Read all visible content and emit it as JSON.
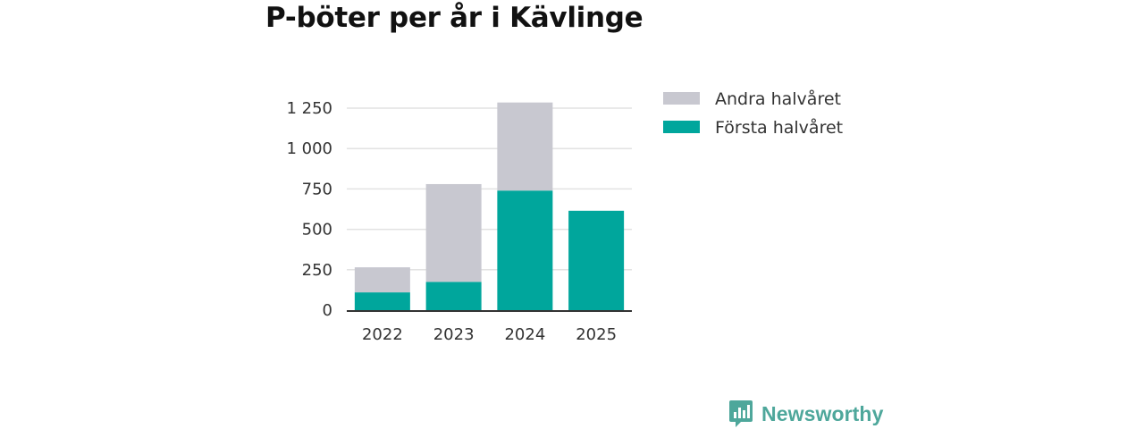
{
  "chart_data": {
    "type": "bar",
    "stacked": true,
    "title": "P-böter per år i Kävlinge",
    "categories": [
      "2022",
      "2023",
      "2024",
      "2025"
    ],
    "series": [
      {
        "name": "Första halvåret",
        "color": "#00a69c",
        "values": [
          110,
          175,
          740,
          615
        ]
      },
      {
        "name": "Andra halvåret",
        "color": "#c8c8d0",
        "values": [
          155,
          605,
          545,
          0
        ]
      }
    ],
    "legend_order": [
      "Andra halvåret",
      "Första halvåret"
    ],
    "legend_position": "right",
    "ylim": [
      0,
      1300
    ],
    "yticks": [
      0,
      250,
      500,
      750,
      1000,
      1250
    ],
    "ytick_labels": [
      "0",
      "250",
      "500",
      "750",
      "1 000",
      "1 250"
    ],
    "grid": true,
    "xlabel": "",
    "ylabel": ""
  },
  "brand": {
    "name": "Newsworthy",
    "color": "#4ea79b",
    "icon": "bar-chart-speech-bubble-icon"
  }
}
